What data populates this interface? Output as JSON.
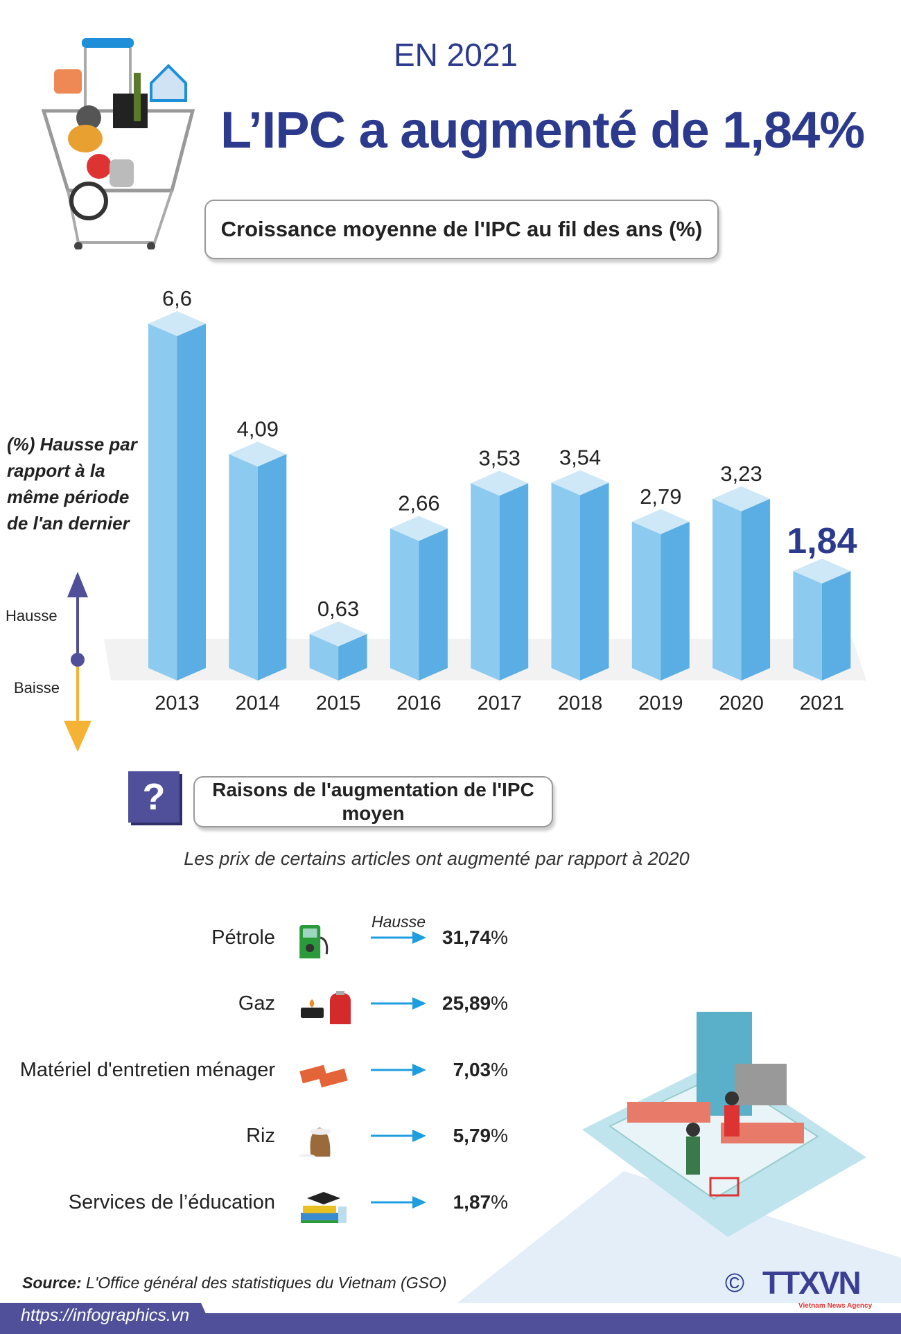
{
  "header": {
    "year_label": "EN 2021",
    "title": "L’IPC a augmenté de  1,84%"
  },
  "chart_data": {
    "type": "bar",
    "title": "Croissance moyenne de l'IPC au fil des ans (%)",
    "ylabel": "(%) Hausse par rapport à la même période de l'an dernier",
    "categories": [
      "2013",
      "2014",
      "2015",
      "2016",
      "2017",
      "2018",
      "2019",
      "2020",
      "2021"
    ],
    "values": [
      6.6,
      4.09,
      0.63,
      2.66,
      3.53,
      3.54,
      2.79,
      3.23,
      1.84
    ],
    "value_labels": [
      "6,6",
      "4,09",
      "0,63",
      "2,66",
      "3,53",
      "3,54",
      "2,79",
      "3,23",
      "1,84"
    ],
    "highlight_index": 8,
    "legend": {
      "up": "Hausse",
      "down": "Baisse"
    },
    "colors": {
      "front": "#5aaee3",
      "side": "#8ccaf0",
      "top": "#cfe8f8",
      "highlight_label": "#2b3a8c"
    }
  },
  "reasons": {
    "question_mark": "?",
    "title": "Raisons de l'augmentation de l'IPC moyen",
    "subtitle": "Les prix de certains articles ont augmenté par rapport à 2020",
    "column_label": "Hausse",
    "items": [
      {
        "label": "Pétrole",
        "value": "31,74",
        "unit": "%",
        "icon": "fuel-pump-icon"
      },
      {
        "label": "Gaz",
        "value": "25,89",
        "unit": "%",
        "icon": "gas-cylinder-icon"
      },
      {
        "label": "Matériel d'entretien ménager",
        "value": "7,03",
        "unit": "%",
        "icon": "bricks-icon"
      },
      {
        "label": "Riz",
        "value": "5,79",
        "unit": "%",
        "icon": "rice-sack-icon"
      },
      {
        "label": "Services de l’éducation",
        "value": "1,87",
        "unit": "%",
        "icon": "graduation-books-icon"
      }
    ]
  },
  "footer": {
    "source_label": "Source:",
    "source_text": " L'Office général des statistiques du Vietnam (GSO)",
    "url": "https://infographics.vn",
    "logo": "TTXVN",
    "logo_sub": "Vietnam News Agency",
    "copyright": "©"
  }
}
